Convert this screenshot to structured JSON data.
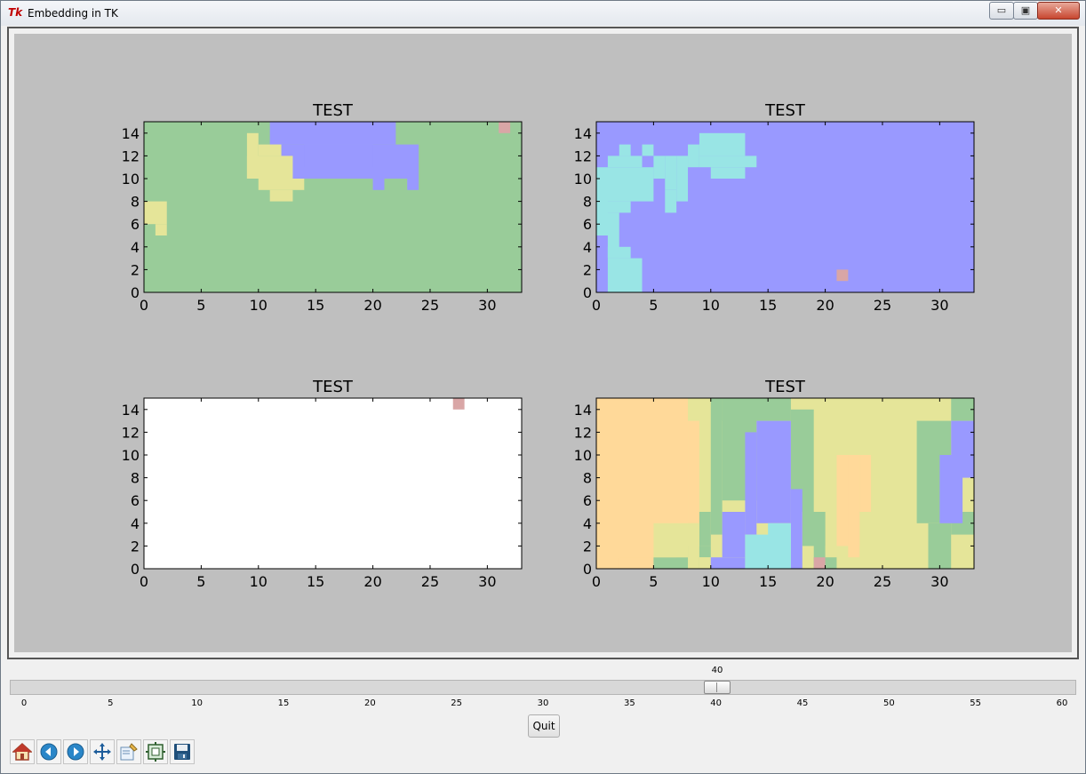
{
  "window": {
    "title": "Embedding in TK",
    "app_icon_text": "Tk"
  },
  "window_controls": {
    "minimize": "▭",
    "maximize": "▣",
    "close": "✕"
  },
  "figure": {
    "background": "#bfbfbf",
    "subplots": [
      {
        "title": "TEST",
        "xlim": [
          0,
          33
        ],
        "ylim": [
          0,
          15
        ],
        "xticks": [
          0,
          5,
          10,
          15,
          20,
          25,
          30
        ],
        "yticks": [
          0,
          2,
          4,
          6,
          8,
          10,
          12,
          14
        ],
        "background": "#99cc99"
      },
      {
        "title": "TEST",
        "xlim": [
          0,
          33
        ],
        "ylim": [
          0,
          15
        ],
        "xticks": [
          0,
          5,
          10,
          15,
          20,
          25,
          30
        ],
        "yticks": [
          0,
          2,
          4,
          6,
          8,
          10,
          12,
          14
        ],
        "background": "#9999ff"
      },
      {
        "title": "TEST",
        "xlim": [
          0,
          33
        ],
        "ylim": [
          0,
          15
        ],
        "xticks": [
          0,
          5,
          10,
          15,
          20,
          25,
          30
        ],
        "yticks": [
          0,
          2,
          4,
          6,
          8,
          10,
          12,
          14
        ],
        "background": "#ffffff"
      },
      {
        "title": "TEST",
        "xlim": [
          0,
          33
        ],
        "ylim": [
          0,
          15
        ],
        "xticks": [
          0,
          5,
          10,
          15,
          20,
          25,
          30
        ],
        "yticks": [
          0,
          2,
          4,
          6,
          8,
          10,
          12,
          14
        ],
        "background": "#e5e599"
      }
    ]
  },
  "slider": {
    "value": "40",
    "min": 0,
    "max": 60,
    "tick_labels": [
      "0",
      "5",
      "10",
      "15",
      "20",
      "25",
      "30",
      "35",
      "40",
      "45",
      "50",
      "55",
      "60"
    ]
  },
  "quit_button": {
    "label": "Quit"
  },
  "toolbar": {
    "buttons": [
      "home-icon",
      "back-icon",
      "forward-icon",
      "pan-icon",
      "zoom-icon",
      "subplots-icon",
      "save-icon"
    ]
  },
  "colors": {
    "green": "#99cc99",
    "blue": "#9999ff",
    "cyan": "#99e5e5",
    "yellow": "#e5e599",
    "orange": "#ffd999",
    "pink": "#d9a6a6",
    "white": "#ffffff"
  }
}
